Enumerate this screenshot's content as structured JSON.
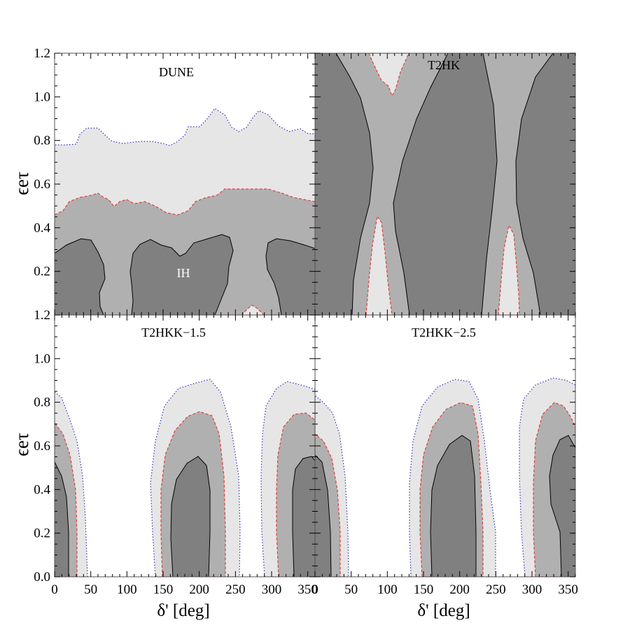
{
  "chart_data": {
    "type": "contour",
    "grid": "2x2",
    "xlabel": "δ' [deg]",
    "ylabel": "ϵeτ",
    "xlim": [
      0,
      360
    ],
    "ylim": [
      0,
      1.2
    ],
    "xticks": [
      0,
      50,
      100,
      150,
      200,
      250,
      300,
      350
    ],
    "yticks": [
      0.2,
      0.4,
      0.6,
      0.8,
      1.0,
      1.2
    ],
    "yticks_bottom": [
      0.0,
      0.2,
      0.4,
      0.6,
      0.8,
      1.0,
      1.2
    ],
    "colors": {
      "dark": "#808080",
      "mid": "#b0b0b0",
      "light": "#e6e6e6",
      "red_contour": "#e04040",
      "blue_contour": "#3030c0"
    },
    "panels": [
      {
        "title": "DUNE",
        "note": "IH",
        "regions": [
          {
            "shade": "light",
            "boundary": "dotted-blue",
            "upper": [
              [
                0,
                0.78
              ],
              [
                15,
                0.78
              ],
              [
                30,
                0.79
              ],
              [
                35,
                0.84
              ],
              [
                45,
                0.86
              ],
              [
                60,
                0.86
              ],
              [
                70,
                0.83
              ],
              [
                80,
                0.8
              ],
              [
                95,
                0.79
              ],
              [
                110,
                0.8
              ],
              [
                120,
                0.8
              ],
              [
                135,
                0.8
              ],
              [
                150,
                0.79
              ],
              [
                160,
                0.78
              ],
              [
                170,
                0.8
              ],
              [
                180,
                0.83
              ],
              [
                185,
                0.87
              ],
              [
                200,
                0.87
              ],
              [
                210,
                0.9
              ],
              [
                222,
                0.95
              ],
              [
                235,
                0.92
              ],
              [
                245,
                0.86
              ],
              [
                255,
                0.84
              ],
              [
                265,
                0.86
              ],
              [
                275,
                0.91
              ],
              [
                283,
                0.94
              ],
              [
                295,
                0.92
              ],
              [
                310,
                0.87
              ],
              [
                325,
                0.84
              ],
              [
                340,
                0.85
              ],
              [
                350,
                0.83
              ],
              [
                360,
                0.83
              ]
            ]
          },
          {
            "shade": "mid",
            "boundary": "dashed-red",
            "upper": [
              [
                0,
                0.46
              ],
              [
                12,
                0.48
              ],
              [
                20,
                0.52
              ],
              [
                35,
                0.54
              ],
              [
                50,
                0.55
              ],
              [
                60,
                0.56
              ],
              [
                68,
                0.54
              ],
              [
                75,
                0.53
              ],
              [
                82,
                0.5
              ],
              [
                90,
                0.52
              ],
              [
                100,
                0.53
              ],
              [
                110,
                0.51
              ],
              [
                125,
                0.52
              ],
              [
                140,
                0.5
              ],
              [
                155,
                0.47
              ],
              [
                170,
                0.46
              ],
              [
                185,
                0.48
              ],
              [
                195,
                0.52
              ],
              [
                210,
                0.54
              ],
              [
                225,
                0.55
              ],
              [
                235,
                0.58
              ],
              [
                250,
                0.58
              ],
              [
                270,
                0.58
              ],
              [
                295,
                0.58
              ],
              [
                305,
                0.57
              ],
              [
                315,
                0.56
              ],
              [
                330,
                0.54
              ],
              [
                345,
                0.53
              ],
              [
                360,
                0.52
              ]
            ]
          },
          {
            "shade": "dark",
            "boundary": "solid-black",
            "x_range": [
              0,
              65
            ],
            "upper_y": 0.35
          },
          {
            "shade": "dark",
            "boundary": "solid-black",
            "x_range": [
              108,
              225
            ],
            "upper_y": 0.37
          },
          {
            "shade": "dark",
            "boundary": "solid-black",
            "x_range": [
              295,
              360
            ],
            "upper_y": 0.35
          }
        ]
      },
      {
        "title": "T2HK",
        "regions": [
          {
            "shade": "dark",
            "boundary": "solid-black",
            "note": "fills most of the panel"
          },
          {
            "shade": "mid",
            "boundary": "solid-black",
            "x_range": [
              35,
              135
            ]
          },
          {
            "shade": "mid",
            "boundary": "solid-black",
            "x_range": [
              225,
              320
            ]
          },
          {
            "shade": "light",
            "boundary": "dashed-red",
            "x_range": [
              70,
              115
            ],
            "lower_y": 1.0
          },
          {
            "shade": "light",
            "boundary": "dashed-red",
            "x_range": [
              70,
              105
            ],
            "upper_y": 0.46
          },
          {
            "shade": "light",
            "boundary": "dashed-red",
            "x_range": [
              253,
              290
            ],
            "upper_y": 0.42
          }
        ]
      },
      {
        "title": "T2HKK−1.5",
        "regions": [
          {
            "shade": "light",
            "boundary": "dotted-blue",
            "x_range": [
              0,
              45
            ],
            "upper_y": 0.86
          },
          {
            "shade": "light",
            "boundary": "dotted-blue",
            "x_range": [
              140,
              258
            ],
            "upper_y": 0.92
          },
          {
            "shade": "light",
            "boundary": "dotted-blue",
            "x_range": [
              292,
              360
            ],
            "upper_y": 0.89
          },
          {
            "shade": "mid",
            "boundary": "dashed-red",
            "x_range": [
              0,
              30
            ],
            "upper_y": 0.71
          },
          {
            "shade": "mid",
            "boundary": "dashed-red",
            "x_range": [
              148,
              233
            ],
            "upper_y": 0.77
          },
          {
            "shade": "mid",
            "boundary": "dashed-red",
            "x_range": [
              308,
              360
            ],
            "upper_y": 0.77
          },
          {
            "shade": "dark",
            "boundary": "solid-black",
            "x_range": [
              0,
              20
            ],
            "upper_y": 0.53
          },
          {
            "shade": "dark",
            "boundary": "solid-black",
            "x_range": [
              163,
              217
            ],
            "upper_y": 0.56
          },
          {
            "shade": "dark",
            "boundary": "solid-black",
            "x_range": [
              325,
              360
            ],
            "upper_y": 0.56
          }
        ]
      },
      {
        "title": "T2HKK−2.5",
        "regions": [
          {
            "shade": "light",
            "boundary": "dotted-blue",
            "x_range": [
              0,
              48
            ],
            "upper_y": 0.84
          },
          {
            "shade": "light",
            "boundary": "dotted-blue",
            "x_range": [
              132,
              250
            ],
            "upper_y": 0.93
          },
          {
            "shade": "light",
            "boundary": "dotted-blue",
            "x_range": [
              290,
              360
            ],
            "upper_y": 0.93
          },
          {
            "shade": "mid",
            "boundary": "dashed-red",
            "x_range": [
              0,
              35
            ],
            "upper_y": 0.63
          },
          {
            "shade": "mid",
            "boundary": "dashed-red",
            "x_range": [
              145,
              233
            ],
            "upper_y": 0.82
          },
          {
            "shade": "mid",
            "boundary": "dashed-red",
            "x_range": [
              305,
              360
            ],
            "upper_y": 0.82
          },
          {
            "shade": "dark",
            "boundary": "solid-black",
            "x_range": [
              0,
              28
            ],
            "upper_y": 0.57
          },
          {
            "shade": "dark",
            "boundary": "solid-black",
            "x_range": [
              165,
              220
            ],
            "upper_y": 0.66
          },
          {
            "shade": "dark",
            "boundary": "solid-black",
            "x_range": [
              320,
              360
            ],
            "upper_y": 0.67
          }
        ]
      }
    ]
  }
}
